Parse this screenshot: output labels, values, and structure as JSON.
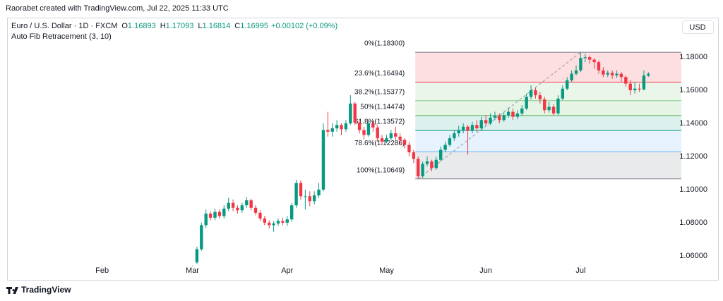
{
  "header": {
    "credit": "Raorabet created with TradingView.com, Jul 22, 2025 11:33 UTC",
    "brand": "TradingView"
  },
  "chart_data": {
    "type": "candlestick",
    "symbol": "Euro / U.S. Dollar · 1D · FXCM",
    "ohlc_labels": [
      "O",
      "H",
      "L",
      "C"
    ],
    "change": "+0.00102 (+0.09%)",
    "indicator": "Auto Fib Retracement (3, 10)",
    "currency": "USD",
    "up_color": "#089981",
    "down_color": "#f23645",
    "ylim": [
      1.0544,
      1.2039
    ],
    "yticks": [
      {
        "value": 1.06,
        "label": "1.06000"
      },
      {
        "value": 1.08,
        "label": "1.08000"
      },
      {
        "value": 1.1,
        "label": "1.10000"
      },
      {
        "value": 1.12,
        "label": "1.12000"
      },
      {
        "value": 1.14,
        "label": "1.14000"
      },
      {
        "value": 1.16,
        "label": "1.16000"
      },
      {
        "value": 1.18,
        "label": "1.18000"
      }
    ],
    "xlim": [
      -41.9,
      107.3
    ],
    "xticks": [
      {
        "value": -21,
        "label": "Feb"
      },
      {
        "value": -1,
        "label": "Mar"
      },
      {
        "value": 20,
        "label": "Apr"
      },
      {
        "value": 42,
        "label": "May"
      },
      {
        "value": 64,
        "label": "Jun"
      },
      {
        "value": 85,
        "label": "Jul"
      }
    ],
    "fib_levels": [
      {
        "label": "0%(1.18300)",
        "price": 1.183,
        "color": "#787b86",
        "fill": "rgba(242,54,69,0.16)"
      },
      {
        "label": "23.6%(1.16494)",
        "price": 1.16494,
        "color": "#f23645",
        "fill": "rgba(129,199,132,0.16)"
      },
      {
        "label": "38.2%(1.15377)",
        "price": 1.15377,
        "color": "#81c784",
        "fill": "rgba(76,175,80,0.14)"
      },
      {
        "label": "50%(1.14474)",
        "price": 1.14474,
        "color": "#4caf50",
        "fill": "rgba(8,153,129,0.14)"
      },
      {
        "label": "61.8%(1.13572)",
        "price": 1.13572,
        "color": "#089981",
        "fill": "rgba(100,181,246,0.16)"
      },
      {
        "label": "78.6%(1.12286)",
        "price": 1.12286,
        "color": "#64b5f6",
        "fill": "rgba(120,123,134,0.16)"
      },
      {
        "label": "100%(1.10649)",
        "price": 1.10649,
        "color": "#787b86",
        "fill": null
      }
    ],
    "open": [
      1.056,
      1.064,
      1.0785,
      1.0855,
      1.083,
      1.0865,
      1.084,
      1.0885,
      1.092,
      1.089,
      1.0875,
      1.0905,
      1.0935,
      1.089,
      1.086,
      1.0825,
      1.08,
      1.0785,
      1.0795,
      1.081,
      1.08,
      1.082,
      1.0905,
      1.104,
      1.096,
      1.096,
      1.093,
      1.0965,
      1.1,
      1.136,
      1.135,
      1.137,
      1.139,
      1.1365,
      1.14,
      1.152,
      1.1405,
      1.136,
      1.133,
      1.14,
      1.1375,
      1.131,
      1.129,
      1.131,
      1.134,
      1.132,
      1.13,
      1.127,
      1.1225,
      1.1185,
      1.108,
      1.1155,
      1.117,
      1.113,
      1.118,
      1.124,
      1.127,
      1.131,
      1.134,
      1.136,
      1.138,
      1.1355,
      1.139,
      1.137,
      1.142,
      1.14,
      1.1435,
      1.1445,
      1.142,
      1.145,
      1.147,
      1.144,
      1.146,
      1.149,
      1.156,
      1.16,
      1.157,
      1.1545,
      1.148,
      1.15,
      1.146,
      1.155,
      1.161,
      1.166,
      1.17,
      1.172,
      1.1795,
      1.18,
      1.1785,
      1.177,
      1.172,
      1.1695,
      1.1705,
      1.169,
      1.17,
      1.168,
      1.164,
      1.16,
      1.161,
      1.1605,
      1.16893
    ],
    "high": [
      1.0655,
      1.08,
      1.088,
      1.087,
      1.0885,
      1.088,
      1.0905,
      1.095,
      1.094,
      1.0905,
      1.092,
      1.0955,
      1.0945,
      1.0905,
      1.0875,
      1.084,
      1.0815,
      1.081,
      1.0825,
      1.083,
      1.084,
      1.092,
      1.106,
      1.1055,
      1.1,
      1.099,
      1.099,
      1.104,
      1.14,
      1.147,
      1.14,
      1.142,
      1.14,
      1.142,
      1.157,
      1.153,
      1.142,
      1.138,
      1.142,
      1.142,
      1.139,
      1.133,
      1.133,
      1.136,
      1.138,
      1.134,
      1.131,
      1.129,
      1.124,
      1.12,
      1.117,
      1.12,
      1.118,
      1.12,
      1.126,
      1.129,
      1.133,
      1.136,
      1.1385,
      1.14,
      1.139,
      1.141,
      1.142,
      1.144,
      1.145,
      1.146,
      1.147,
      1.146,
      1.147,
      1.1495,
      1.149,
      1.148,
      1.151,
      1.158,
      1.163,
      1.1615,
      1.159,
      1.156,
      1.153,
      1.1515,
      1.157,
      1.163,
      1.168,
      1.172,
      1.175,
      1.183,
      1.182,
      1.181,
      1.1795,
      1.178,
      1.174,
      1.172,
      1.172,
      1.172,
      1.171,
      1.169,
      1.166,
      1.165,
      1.164,
      1.172,
      1.17093
    ],
    "low": [
      1.055,
      1.063,
      1.077,
      1.0815,
      1.0815,
      1.0825,
      1.0825,
      1.087,
      1.087,
      1.0855,
      1.086,
      1.089,
      1.0875,
      1.0845,
      1.081,
      1.0785,
      1.0765,
      1.0745,
      1.078,
      1.0785,
      1.078,
      1.0805,
      1.089,
      1.094,
      1.088,
      1.09,
      1.091,
      1.095,
      1.099,
      1.132,
      1.132,
      1.135,
      1.133,
      1.135,
      1.139,
      1.139,
      1.134,
      1.13,
      1.132,
      1.135,
      1.129,
      1.127,
      1.128,
      1.13,
      1.13,
      1.127,
      1.125,
      1.12,
      1.116,
      1.10649,
      1.107,
      1.114,
      1.111,
      1.112,
      1.117,
      1.1225,
      1.126,
      1.1295,
      1.132,
      1.134,
      1.121,
      1.134,
      1.135,
      1.136,
      1.1385,
      1.139,
      1.142,
      1.14,
      1.141,
      1.1435,
      1.142,
      1.1425,
      1.1445,
      1.148,
      1.1545,
      1.155,
      1.152,
      1.146,
      1.1465,
      1.145,
      1.145,
      1.154,
      1.16,
      1.165,
      1.169,
      1.171,
      1.177,
      1.176,
      1.173,
      1.17,
      1.168,
      1.168,
      1.167,
      1.1675,
      1.165,
      1.162,
      1.157,
      1.158,
      1.159,
      1.16,
      1.16814
    ],
    "close": [
      1.064,
      1.0785,
      1.0855,
      1.083,
      1.0865,
      1.084,
      1.0885,
      1.092,
      1.089,
      1.0875,
      1.0905,
      1.0935,
      1.089,
      1.086,
      1.0825,
      1.08,
      1.0785,
      1.0795,
      1.081,
      1.08,
      1.082,
      1.0905,
      1.104,
      1.096,
      1.096,
      1.093,
      1.0965,
      1.1,
      1.136,
      1.135,
      1.137,
      1.139,
      1.1365,
      1.14,
      1.152,
      1.1405,
      1.136,
      1.133,
      1.14,
      1.1375,
      1.131,
      1.129,
      1.131,
      1.134,
      1.132,
      1.13,
      1.127,
      1.1225,
      1.1185,
      1.108,
      1.1155,
      1.117,
      1.113,
      1.118,
      1.124,
      1.127,
      1.131,
      1.134,
      1.136,
      1.138,
      1.1355,
      1.139,
      1.137,
      1.142,
      1.14,
      1.1435,
      1.1445,
      1.142,
      1.145,
      1.147,
      1.144,
      1.146,
      1.149,
      1.156,
      1.16,
      1.157,
      1.1545,
      1.148,
      1.15,
      1.146,
      1.155,
      1.161,
      1.166,
      1.17,
      1.172,
      1.1795,
      1.18,
      1.1785,
      1.177,
      1.172,
      1.1695,
      1.1705,
      1.169,
      1.17,
      1.168,
      1.164,
      1.16,
      1.161,
      1.1605,
      1.16893,
      1.16995
    ]
  }
}
